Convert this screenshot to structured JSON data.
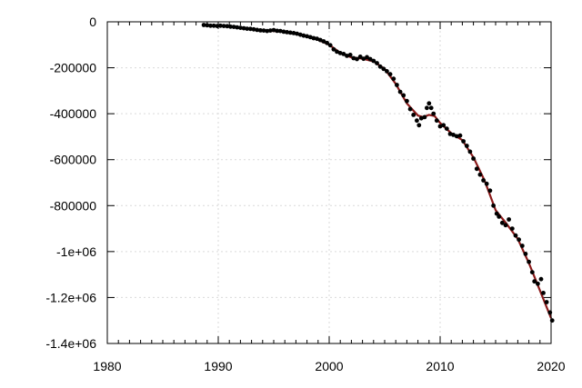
{
  "chart_data": {
    "type": "scatter",
    "title": "",
    "xlabel": "",
    "ylabel": "",
    "xlim": [
      1980,
      2020
    ],
    "ylim": [
      -1400000,
      0
    ],
    "x_ticks": [
      1980,
      1990,
      2000,
      2010,
      2020
    ],
    "x_tick_labels": [
      "1980",
      "1990",
      "2000",
      "2010",
      "2020"
    ],
    "y_ticks": [
      0,
      -200000,
      -400000,
      -600000,
      -800000,
      -1000000,
      -1200000,
      -1400000
    ],
    "y_tick_labels": [
      "0",
      "-200000",
      "-400000",
      "-600000",
      "-800000",
      "-1e+06",
      "-1.2e+06",
      "-1.4e+06"
    ],
    "grid": true,
    "legend": "none",
    "colors": {
      "points": "#000000",
      "fit": "#8b1a1a",
      "grid": "#d9d9d9",
      "axis": "#000000"
    },
    "series": [
      {
        "type": "scatter",
        "points": [
          [
            1988.7,
            -14000
          ],
          [
            1989.0,
            -15000
          ],
          [
            1989.3,
            -17000
          ],
          [
            1989.6,
            -17000
          ],
          [
            1989.9,
            -18000
          ],
          [
            1990.2,
            -17000
          ],
          [
            1990.5,
            -18000
          ],
          [
            1990.8,
            -19000
          ],
          [
            1991.1,
            -21000
          ],
          [
            1991.4,
            -22000
          ],
          [
            1991.7,
            -24000
          ],
          [
            1992.0,
            -26000
          ],
          [
            1992.3,
            -28000
          ],
          [
            1992.6,
            -30000
          ],
          [
            1992.9,
            -31000
          ],
          [
            1993.2,
            -33000
          ],
          [
            1993.5,
            -35000
          ],
          [
            1993.8,
            -37000
          ],
          [
            1994.1,
            -38000
          ],
          [
            1994.4,
            -40000
          ],
          [
            1994.7,
            -38000
          ],
          [
            1995.0,
            -36000
          ],
          [
            1995.3,
            -39000
          ],
          [
            1995.6,
            -40000
          ],
          [
            1995.9,
            -43000
          ],
          [
            1996.2,
            -45000
          ],
          [
            1996.5,
            -47000
          ],
          [
            1996.8,
            -49000
          ],
          [
            1997.1,
            -52000
          ],
          [
            1997.4,
            -56000
          ],
          [
            1997.7,
            -60000
          ],
          [
            1998.0,
            -63000
          ],
          [
            1998.3,
            -67000
          ],
          [
            1998.6,
            -71000
          ],
          [
            1998.9,
            -74000
          ],
          [
            1999.2,
            -79000
          ],
          [
            1999.5,
            -85000
          ],
          [
            1999.8,
            -92000
          ],
          [
            2000.1,
            -102000
          ],
          [
            2000.4,
            -120000
          ],
          [
            2000.7,
            -130000
          ],
          [
            2001.0,
            -136000
          ],
          [
            2001.3,
            -140000
          ],
          [
            2001.6,
            -148000
          ],
          [
            2001.9,
            -144000
          ],
          [
            2002.2,
            -158000
          ],
          [
            2002.5,
            -162000
          ],
          [
            2002.8,
            -152000
          ],
          [
            2003.1,
            -161000
          ],
          [
            2003.4,
            -154000
          ],
          [
            2003.7,
            -162000
          ],
          [
            2004.0,
            -170000
          ],
          [
            2004.3,
            -180000
          ],
          [
            2004.6,
            -195000
          ],
          [
            2004.9,
            -205000
          ],
          [
            2005.2,
            -215000
          ],
          [
            2005.5,
            -228000
          ],
          [
            2005.8,
            -248000
          ],
          [
            2006.1,
            -275000
          ],
          [
            2006.4,
            -305000
          ],
          [
            2006.7,
            -320000
          ],
          [
            2007.0,
            -345000
          ],
          [
            2007.3,
            -380000
          ],
          [
            2007.6,
            -405000
          ],
          [
            2007.9,
            -430000
          ],
          [
            2008.1,
            -450000
          ],
          [
            2008.3,
            -420000
          ],
          [
            2008.6,
            -415000
          ],
          [
            2008.8,
            -375000
          ],
          [
            2009.0,
            -355000
          ],
          [
            2009.2,
            -375000
          ],
          [
            2009.4,
            -400000
          ],
          [
            2009.7,
            -430000
          ],
          [
            2010.0,
            -455000
          ],
          [
            2010.3,
            -450000
          ],
          [
            2010.6,
            -465000
          ],
          [
            2010.9,
            -488000
          ],
          [
            2011.2,
            -492000
          ],
          [
            2011.5,
            -498000
          ],
          [
            2011.8,
            -495000
          ],
          [
            2012.1,
            -520000
          ],
          [
            2012.4,
            -540000
          ],
          [
            2012.7,
            -565000
          ],
          [
            2013.0,
            -595000
          ],
          [
            2013.3,
            -640000
          ],
          [
            2013.6,
            -665000
          ],
          [
            2013.9,
            -690000
          ],
          [
            2014.2,
            -705000
          ],
          [
            2014.5,
            -735000
          ],
          [
            2014.8,
            -800000
          ],
          [
            2015.1,
            -835000
          ],
          [
            2015.3,
            -848000
          ],
          [
            2015.6,
            -875000
          ],
          [
            2015.9,
            -885000
          ],
          [
            2016.2,
            -860000
          ],
          [
            2016.5,
            -900000
          ],
          [
            2016.8,
            -930000
          ],
          [
            2017.1,
            -948000
          ],
          [
            2017.4,
            -975000
          ],
          [
            2017.7,
            -1010000
          ],
          [
            2018.0,
            -1045000
          ],
          [
            2018.3,
            -1090000
          ],
          [
            2018.5,
            -1130000
          ],
          [
            2018.8,
            -1140000
          ],
          [
            2019.1,
            -1120000
          ],
          [
            2019.3,
            -1180000
          ],
          [
            2019.6,
            -1220000
          ],
          [
            2019.9,
            -1265000
          ],
          [
            2020.1,
            -1300000
          ]
        ]
      },
      {
        "type": "line",
        "points": [
          [
            1988.7,
            -15000
          ],
          [
            1990.0,
            -17000
          ],
          [
            1991.0,
            -21000
          ],
          [
            1992.0,
            -26000
          ],
          [
            1993.0,
            -31000
          ],
          [
            1994.0,
            -37000
          ],
          [
            1995.0,
            -40000
          ],
          [
            1996.0,
            -44000
          ],
          [
            1997.0,
            -51000
          ],
          [
            1998.0,
            -62000
          ],
          [
            1999.0,
            -78000
          ],
          [
            2000.0,
            -100000
          ],
          [
            2001.0,
            -135000
          ],
          [
            2002.0,
            -155000
          ],
          [
            2003.0,
            -160000
          ],
          [
            2004.0,
            -172000
          ],
          [
            2005.0,
            -205000
          ],
          [
            2006.0,
            -270000
          ],
          [
            2007.0,
            -355000
          ],
          [
            2008.0,
            -408000
          ],
          [
            2008.5,
            -415000
          ],
          [
            2009.0,
            -405000
          ],
          [
            2009.5,
            -410000
          ],
          [
            2010.0,
            -440000
          ],
          [
            2011.0,
            -485000
          ],
          [
            2012.0,
            -515000
          ],
          [
            2013.0,
            -590000
          ],
          [
            2014.0,
            -690000
          ],
          [
            2015.0,
            -820000
          ],
          [
            2016.0,
            -880000
          ],
          [
            2017.0,
            -945000
          ],
          [
            2018.0,
            -1050000
          ],
          [
            2019.0,
            -1170000
          ],
          [
            2020.0,
            -1290000
          ]
        ]
      }
    ]
  }
}
